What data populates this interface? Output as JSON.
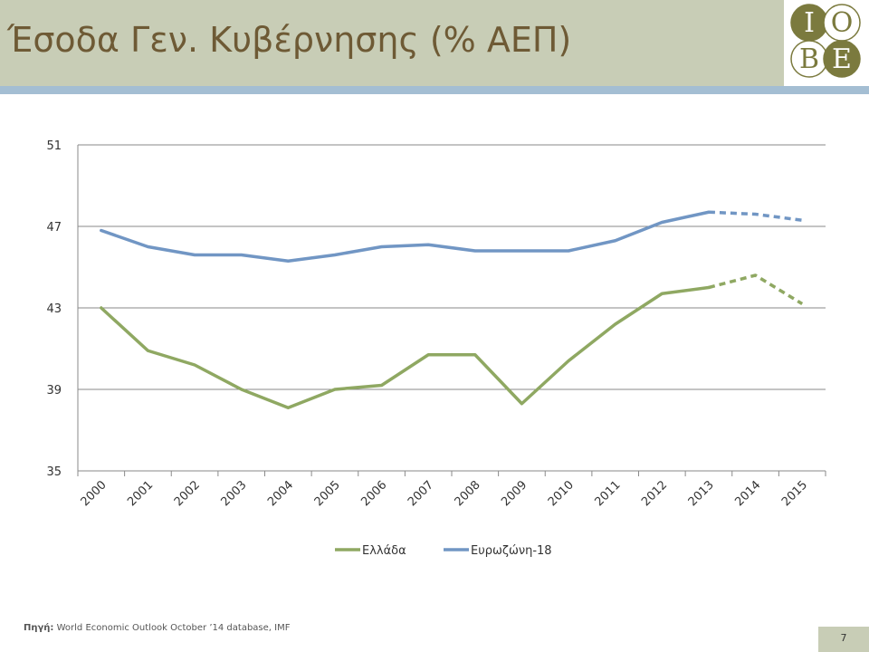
{
  "header": {
    "title": "Έσοδα Γεν. Κυβέρνησης (% ΑΕΠ)"
  },
  "logo": {
    "letters": [
      "I",
      "O",
      "B",
      "E"
    ],
    "color": "#7b7a3e"
  },
  "colors": {
    "header_bg": "#c8cdb6",
    "band": "#a4bed3",
    "title": "#6e5a35"
  },
  "chart_data": {
    "type": "line",
    "categories": [
      "2000",
      "2001",
      "2002",
      "2003",
      "2004",
      "2005",
      "2006",
      "2007",
      "2008",
      "2009",
      "2010",
      "2011",
      "2012",
      "2013",
      "2014",
      "2015"
    ],
    "ylim": [
      35,
      51
    ],
    "yticks": [
      35,
      39,
      43,
      47,
      51
    ],
    "grid": true,
    "legend_position": "bottom",
    "projection_start": "2013",
    "series": [
      {
        "name": "Ελλάδα",
        "color": "#8fa862",
        "values": [
          43.0,
          40.9,
          40.2,
          39.0,
          38.1,
          39.0,
          39.2,
          40.7,
          40.7,
          38.3,
          40.4,
          42.2,
          43.7,
          44.0,
          44.6,
          43.2
        ]
      },
      {
        "name": "Ευρωζώνη-18",
        "color": "#7196c4",
        "values": [
          46.8,
          46.0,
          45.6,
          45.6,
          45.3,
          45.6,
          46.0,
          46.1,
          45.8,
          45.8,
          45.8,
          46.3,
          47.2,
          47.7,
          47.6,
          47.3
        ]
      }
    ]
  },
  "source": {
    "label": "Πηγή:",
    "text": "World Economic Outlook October ’14 database, IMF"
  },
  "page_number": "7"
}
